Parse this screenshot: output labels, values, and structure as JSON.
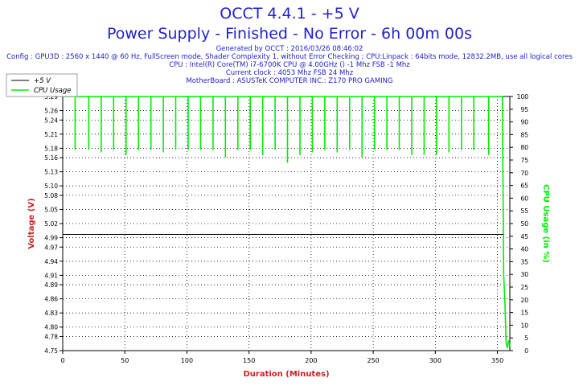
{
  "header": {
    "title": "OCCT 4.4.1 - +5 V",
    "subtitle": "Power Supply - Finished - No Error - 6h 00m 00s",
    "info_lines": [
      "Generated by OCCT : 2016/03/26 08:46:02",
      "Config : GPU3D : 2560 x 1440 @ 60 Hz, FullScreen mode, Shader Complexity 1, without Error Checking ; CPU:Linpack : 64bits mode, 12832.2MB, use all logical cores",
      "CPU : Intel(R) Core(TM) i7-6700K CPU @ 4.00GHz () -1 Mhz FSB -1 Mhz",
      "Current clock : 4053 Mhz FSB 24 Mhz",
      "MotherBoard : ASUSTeK COMPUTER INC.: Z170 PRO GAMING"
    ]
  },
  "colors": {
    "text": "#2222cc",
    "axis_label": "#cc2222",
    "voltage": "#000000",
    "cpu": "#00ee00",
    "grid": "#000000"
  },
  "chart_data": {
    "type": "line",
    "xlabel": "Duration (Minutes)",
    "ylabel_left": "Voltage (V)",
    "ylabel_right": "CPU Usage (in %)",
    "xlim": [
      0,
      360
    ],
    "ylim_left": [
      4.75,
      5.29
    ],
    "ylim_right": [
      0,
      100
    ],
    "x_ticks": [
      "0",
      "50",
      "100",
      "150",
      "200",
      "250",
      "300",
      "350"
    ],
    "y_left_ticks": [
      "4.75",
      "4.78",
      "4.80",
      "4.83",
      "4.86",
      "4.89",
      "4.91",
      "4.94",
      "4.97",
      "4.99",
      "5.02",
      "5.05",
      "5.08",
      "5.10",
      "5.13",
      "5.16",
      "5.18",
      "5.21",
      "5.24",
      "5.26",
      "5.29"
    ],
    "y_right_ticks": [
      "0",
      "5",
      "10",
      "15",
      "20",
      "25",
      "30",
      "35",
      "40",
      "45",
      "50",
      "55",
      "60",
      "65",
      "70",
      "75",
      "80",
      "85",
      "90",
      "95",
      "100"
    ],
    "grid": true,
    "legend_position": "top-left",
    "series": [
      {
        "name": "+5 V",
        "axis": "left",
        "x": [
          0,
          355
        ],
        "y": [
          4.997,
          4.997
        ]
      },
      {
        "name": "CPU Usage",
        "axis": "right",
        "baseline": 100,
        "dips": [
          {
            "x": 10,
            "y": 79
          },
          {
            "x": 21,
            "y": 79
          },
          {
            "x": 31,
            "y": 78
          },
          {
            "x": 41,
            "y": 79
          },
          {
            "x": 51,
            "y": 77
          },
          {
            "x": 61,
            "y": 79
          },
          {
            "x": 71,
            "y": 79
          },
          {
            "x": 81,
            "y": 78
          },
          {
            "x": 91,
            "y": 79
          },
          {
            "x": 101,
            "y": 79
          },
          {
            "x": 111,
            "y": 79
          },
          {
            "x": 121,
            "y": 79
          },
          {
            "x": 131,
            "y": 76
          },
          {
            "x": 141,
            "y": 79
          },
          {
            "x": 151,
            "y": 79
          },
          {
            "x": 161,
            "y": 77
          },
          {
            "x": 171,
            "y": 79
          },
          {
            "x": 181,
            "y": 74
          },
          {
            "x": 191,
            "y": 77
          },
          {
            "x": 201,
            "y": 78
          },
          {
            "x": 211,
            "y": 79
          },
          {
            "x": 221,
            "y": 78
          },
          {
            "x": 231,
            "y": 79
          },
          {
            "x": 241,
            "y": 76
          },
          {
            "x": 251,
            "y": 79
          },
          {
            "x": 261,
            "y": 79
          },
          {
            "x": 271,
            "y": 79
          },
          {
            "x": 281,
            "y": 77
          },
          {
            "x": 291,
            "y": 77
          },
          {
            "x": 301,
            "y": 77
          },
          {
            "x": 311,
            "y": 78
          },
          {
            "x": 321,
            "y": 79
          },
          {
            "x": 331,
            "y": 79
          },
          {
            "x": 343,
            "y": 77
          }
        ],
        "tail": [
          {
            "x": 354,
            "y": 100
          },
          {
            "x": 355,
            "y": 30
          },
          {
            "x": 356,
            "y": 20
          },
          {
            "x": 357,
            "y": 3
          },
          {
            "x": 358,
            "y": 1
          },
          {
            "x": 359,
            "y": 4
          },
          {
            "x": 360,
            "y": 2
          }
        ]
      }
    ]
  }
}
